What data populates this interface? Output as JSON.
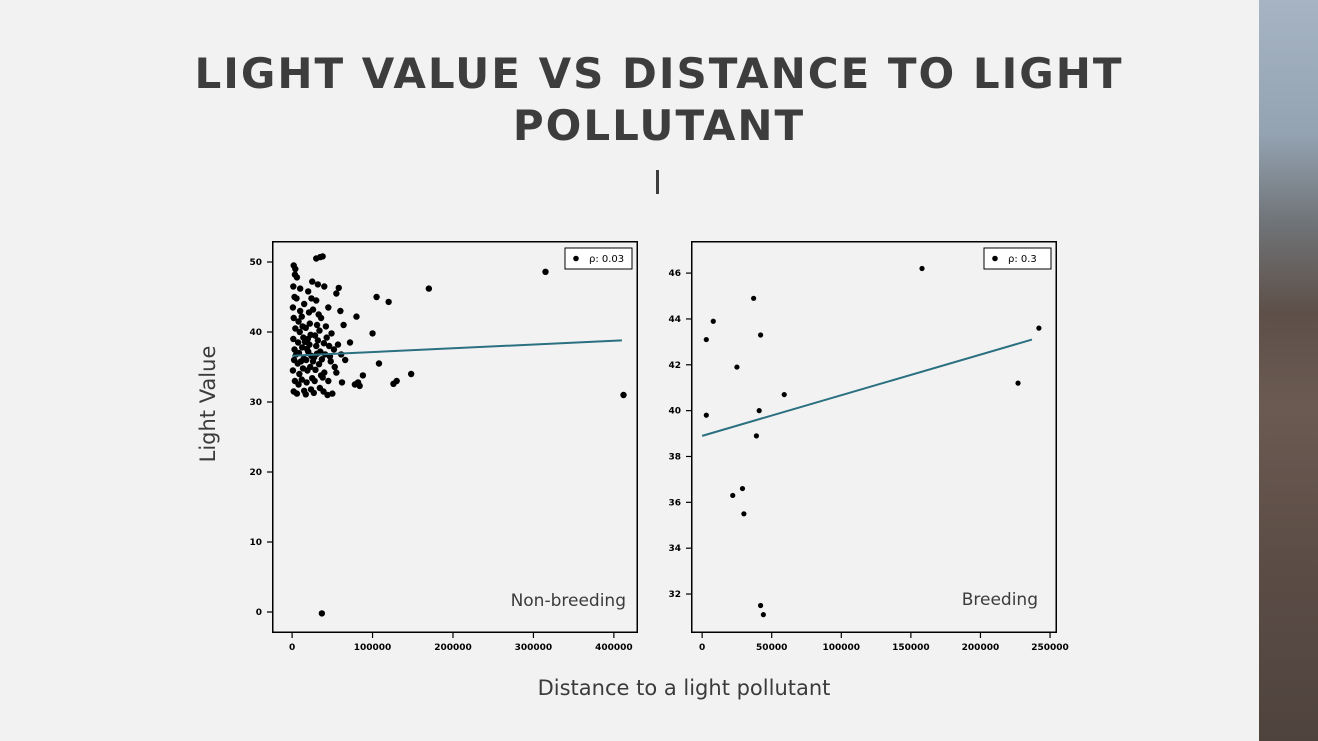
{
  "slide": {
    "title": "LIGHT VALUE VS DISTANCE TO LIGHT POLLUTANT",
    "ylabel": "Light Value",
    "xlabel": "Distance to a light pollutant"
  },
  "colors": {
    "points": "#000000",
    "fit_line": "#2a7080",
    "background": "#f2f2f2",
    "text": "#3d3d3d"
  },
  "chart_data": [
    {
      "type": "scatter",
      "panel_label": "Non-breeding",
      "legend": "ρ: 0.03",
      "legend_position": "top-right",
      "xlim": [
        -25000,
        430000
      ],
      "ylim": [
        -3,
        53
      ],
      "xticks": [
        0,
        100000,
        200000,
        300000,
        400000
      ],
      "yticks": [
        0,
        10,
        20,
        30,
        40,
        50
      ],
      "grid": false,
      "points": [
        [
          2000,
          49.5
        ],
        [
          4000,
          49.0
        ],
        [
          30000,
          50.5
        ],
        [
          35000,
          50.7
        ],
        [
          38000,
          50.8
        ],
        [
          25000,
          47.2
        ],
        [
          40000,
          46.5
        ],
        [
          58000,
          46.3
        ],
        [
          55000,
          45.5
        ],
        [
          105000,
          45.0
        ],
        [
          120000,
          44.3
        ],
        [
          170000,
          46.2
        ],
        [
          315000,
          48.6
        ],
        [
          80000,
          42.2
        ],
        [
          60000,
          43.0
        ],
        [
          45000,
          43.5
        ],
        [
          100000,
          39.8
        ],
        [
          108000,
          35.5
        ],
        [
          148000,
          34.0
        ],
        [
          130000,
          33.0
        ],
        [
          126000,
          32.6
        ],
        [
          88000,
          33.8
        ],
        [
          82000,
          32.8
        ],
        [
          78000,
          32.5
        ],
        [
          84000,
          32.3
        ],
        [
          412000,
          31.0
        ],
        [
          62000,
          32.8
        ],
        [
          37000,
          -0.2
        ],
        [
          66000,
          36.0
        ],
        [
          72000,
          38.5
        ],
        [
          64000,
          41.0
        ],
        [
          52000,
          37.5
        ],
        [
          48000,
          35.8
        ],
        [
          55000,
          34.2
        ],
        [
          50000,
          31.2
        ],
        [
          44000,
          31.0
        ],
        [
          38000,
          33.5
        ],
        [
          43000,
          39.2
        ],
        [
          36000,
          42.0
        ],
        [
          30000,
          44.5
        ],
        [
          20000,
          45.8
        ],
        [
          15000,
          44.0
        ],
        [
          10000,
          46.2
        ],
        [
          6000,
          47.8
        ],
        [
          3000,
          45.0
        ],
        [
          1000,
          43.5
        ],
        [
          2000,
          42.0
        ],
        [
          4000,
          40.5
        ],
        [
          1500,
          39.0
        ],
        [
          3000,
          37.5
        ],
        [
          2500,
          36.0
        ],
        [
          1000,
          34.5
        ],
        [
          3500,
          33.0
        ],
        [
          2000,
          31.5
        ],
        [
          6000,
          31.2
        ],
        [
          8000,
          32.5
        ],
        [
          9000,
          34.0
        ],
        [
          7000,
          35.5
        ],
        [
          8500,
          37.0
        ],
        [
          7500,
          38.5
        ],
        [
          9500,
          40.0
        ],
        [
          8000,
          41.5
        ],
        [
          10000,
          43.0
        ],
        [
          12000,
          42.2
        ],
        [
          13000,
          40.8
        ],
        [
          14000,
          39.2
        ],
        [
          12500,
          37.8
        ],
        [
          14500,
          36.2
        ],
        [
          13500,
          34.8
        ],
        [
          12000,
          33.2
        ],
        [
          15000,
          31.6
        ],
        [
          17000,
          31.1
        ],
        [
          18000,
          32.8
        ],
        [
          19000,
          34.5
        ],
        [
          17500,
          36.0
        ],
        [
          18500,
          37.6
        ],
        [
          19500,
          39.0
        ],
        [
          17000,
          40.6
        ],
        [
          21000,
          42.8
        ],
        [
          22000,
          41.2
        ],
        [
          23000,
          39.6
        ],
        [
          21500,
          38.2
        ],
        [
          24000,
          36.6
        ],
        [
          22500,
          35.0
        ],
        [
          25000,
          33.4
        ],
        [
          23500,
          31.8
        ],
        [
          27000,
          31.3
        ],
        [
          28000,
          33.0
        ],
        [
          29000,
          34.6
        ],
        [
          27500,
          36.4
        ],
        [
          30000,
          38.0
        ],
        [
          28500,
          39.5
        ],
        [
          31000,
          41.0
        ],
        [
          26000,
          43.2
        ],
        [
          33000,
          42.5
        ],
        [
          34000,
          40.2
        ],
        [
          32000,
          38.8
        ],
        [
          35000,
          37.2
        ],
        [
          33500,
          35.4
        ],
        [
          36000,
          33.8
        ],
        [
          34500,
          32.0
        ],
        [
          39000,
          31.5
        ],
        [
          40000,
          34.2
        ],
        [
          41000,
          36.8
        ],
        [
          39500,
          38.4
        ],
        [
          42000,
          40.8
        ],
        [
          46000,
          38.0
        ],
        [
          47000,
          36.5
        ],
        [
          49000,
          39.8
        ],
        [
          53000,
          35.0
        ],
        [
          57000,
          38.2
        ],
        [
          61000,
          36.8
        ],
        [
          5000,
          36.8
        ],
        [
          11000,
          35.8
        ],
        [
          16000,
          38.6
        ],
        [
          20000,
          37.2
        ],
        [
          26000,
          35.8
        ],
        [
          31000,
          36.9
        ],
        [
          37000,
          36.1
        ],
        [
          45000,
          33.0
        ],
        [
          1500,
          46.5
        ],
        [
          5500,
          44.8
        ],
        [
          3500,
          48.2
        ],
        [
          24000,
          44.8
        ],
        [
          32000,
          46.8
        ]
      ],
      "fit_line": [
        [
          0,
          36.6
        ],
        [
          410000,
          38.8
        ]
      ]
    },
    {
      "type": "scatter",
      "panel_label": "Breeding",
      "legend": "ρ: 0.3",
      "legend_position": "top-right",
      "xlim": [
        -8000,
        255000
      ],
      "ylim": [
        30.3,
        47.4
      ],
      "xticks": [
        0,
        50000,
        100000,
        150000,
        200000,
        250000
      ],
      "yticks": [
        32,
        34,
        36,
        38,
        40,
        42,
        44,
        46
      ],
      "grid": false,
      "points": [
        [
          3000,
          43.1
        ],
        [
          8000,
          43.9
        ],
        [
          3000,
          39.8
        ],
        [
          25000,
          41.9
        ],
        [
          37000,
          44.9
        ],
        [
          42000,
          43.3
        ],
        [
          41000,
          40.0
        ],
        [
          39000,
          38.9
        ],
        [
          59000,
          40.7
        ],
        [
          29000,
          36.6
        ],
        [
          22000,
          36.3
        ],
        [
          30000,
          35.5
        ],
        [
          42000,
          31.5
        ],
        [
          44000,
          31.1
        ],
        [
          158000,
          46.2
        ],
        [
          227000,
          41.2
        ],
        [
          242000,
          43.6
        ]
      ],
      "fit_line": [
        [
          0,
          38.9
        ],
        [
          237000,
          43.1
        ]
      ]
    }
  ]
}
